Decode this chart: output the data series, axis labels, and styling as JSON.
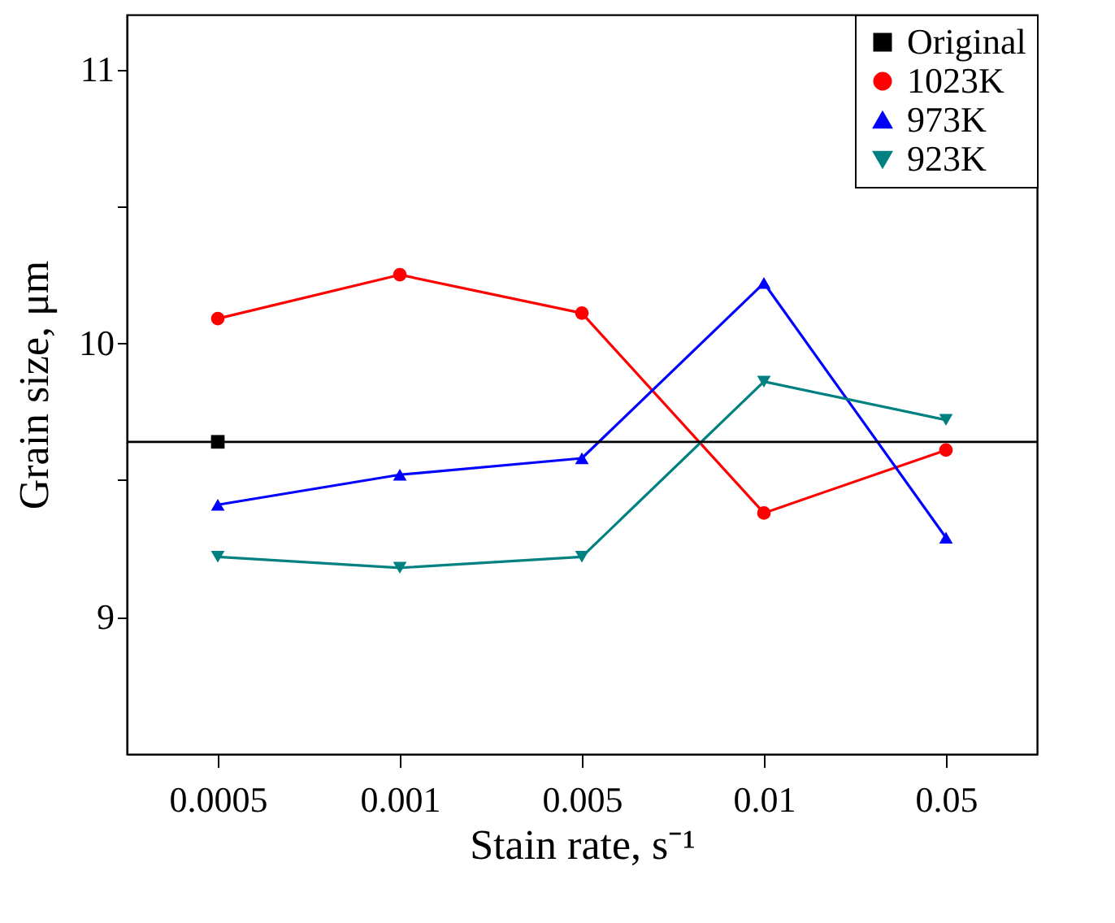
{
  "chart_data": {
    "type": "line",
    "xlabel": "Stain rate, s⁻¹",
    "ylabel": "Grain size, μm",
    "categories": [
      "0.0005",
      "0.001",
      "0.005",
      "0.01",
      "0.05"
    ],
    "series": [
      {
        "name": "Original",
        "color": "#000000",
        "marker": "square",
        "values": [
          9.64,
          null,
          null,
          null,
          null
        ]
      },
      {
        "name": "1023K",
        "color": "#ff0000",
        "marker": "circle",
        "values": [
          10.09,
          10.25,
          10.11,
          9.38,
          9.61
        ]
      },
      {
        "name": "973K",
        "color": "#0000ff",
        "marker": "triangle",
        "values": [
          9.41,
          9.52,
          9.58,
          10.22,
          9.29
        ]
      },
      {
        "name": "923K",
        "color": "#008080",
        "marker": "triangle-down",
        "values": [
          9.22,
          9.18,
          9.22,
          9.86,
          9.72
        ]
      }
    ],
    "ref_lines": [
      {
        "axis": "y",
        "value": 9.64,
        "color": "#000000"
      }
    ],
    "ylim": [
      8.5,
      11.2
    ],
    "yticks": [
      9,
      {
        "value": 9.5,
        "label": null
      },
      10,
      {
        "value": 10.5,
        "label": null
      },
      11
    ],
    "legend": "top right",
    "grid": false,
    "line_style": "solid"
  }
}
